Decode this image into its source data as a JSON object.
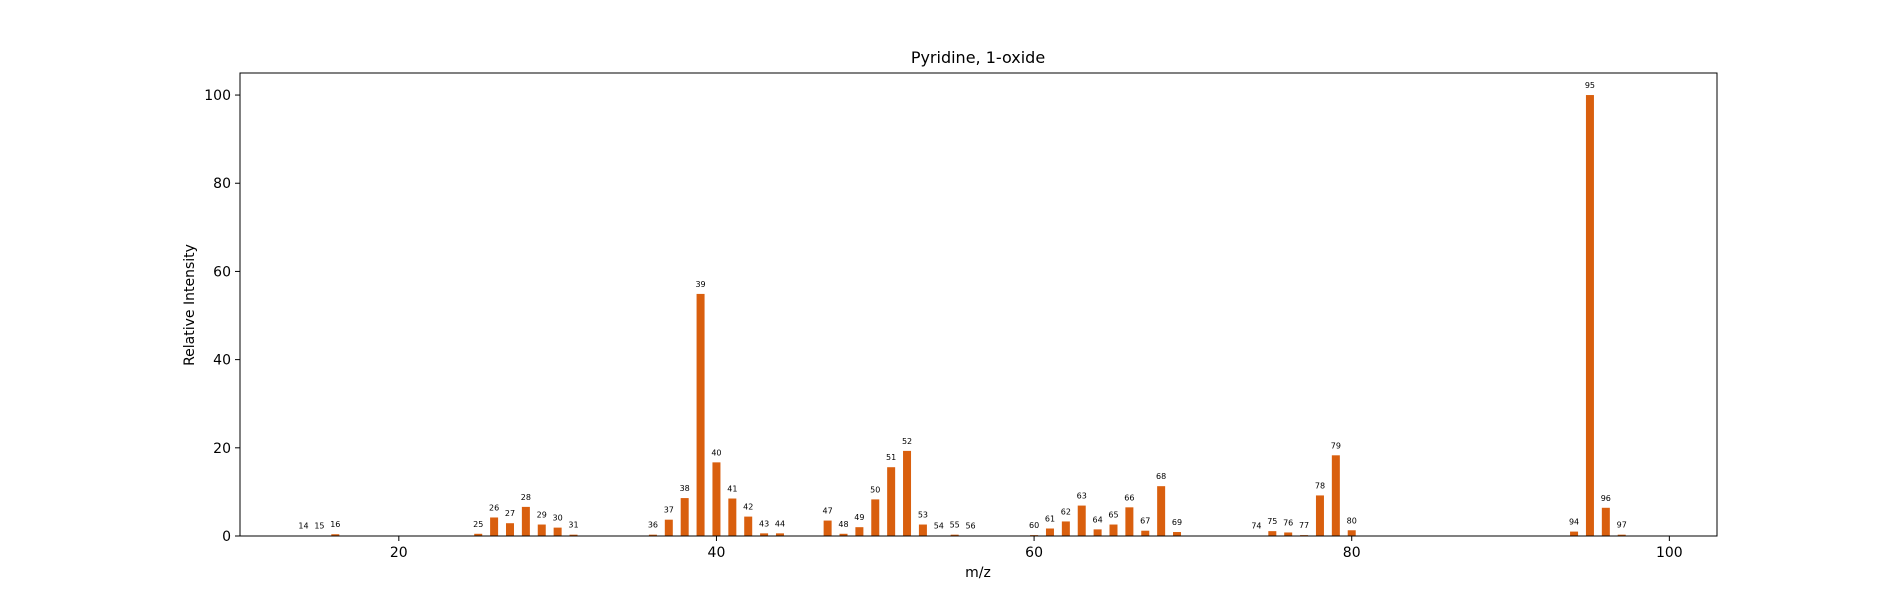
{
  "chart_data": {
    "type": "bar",
    "title": "Pyridine, 1-oxide",
    "xlabel": "m/z",
    "ylabel": "Relative Intensity",
    "xlim": [
      10,
      103
    ],
    "ylim": [
      0,
      105
    ],
    "xticks": [
      20,
      40,
      60,
      80,
      100
    ],
    "yticks": [
      0,
      20,
      40,
      60,
      80,
      100
    ],
    "grid": false,
    "bar_color": "#d95f0e",
    "series": [
      {
        "x": [
          14,
          15,
          16,
          25,
          26,
          27,
          28,
          29,
          30,
          31,
          36,
          37,
          38,
          39,
          40,
          41,
          42,
          43,
          44,
          47,
          48,
          49,
          50,
          51,
          52,
          53,
          54,
          55,
          56,
          60,
          61,
          62,
          63,
          64,
          65,
          66,
          67,
          68,
          69,
          74,
          75,
          76,
          77,
          78,
          79,
          80,
          94,
          95,
          96,
          97
        ],
        "values": [
          0.1,
          0.1,
          0.4,
          0.5,
          4.2,
          2.9,
          6.6,
          2.6,
          1.9,
          0.3,
          0.3,
          3.7,
          8.6,
          54.9,
          16.7,
          8.5,
          4.4,
          0.6,
          0.6,
          3.5,
          0.5,
          2.0,
          8.3,
          15.6,
          19.3,
          2.6,
          0.1,
          0.3,
          0.1,
          0.2,
          1.7,
          3.3,
          6.9,
          1.5,
          2.6,
          6.5,
          1.2,
          11.3,
          0.9,
          0.1,
          1.1,
          0.8,
          0.2,
          9.2,
          18.3,
          1.3,
          1.0,
          100.0,
          6.4,
          0.3
        ]
      }
    ]
  }
}
